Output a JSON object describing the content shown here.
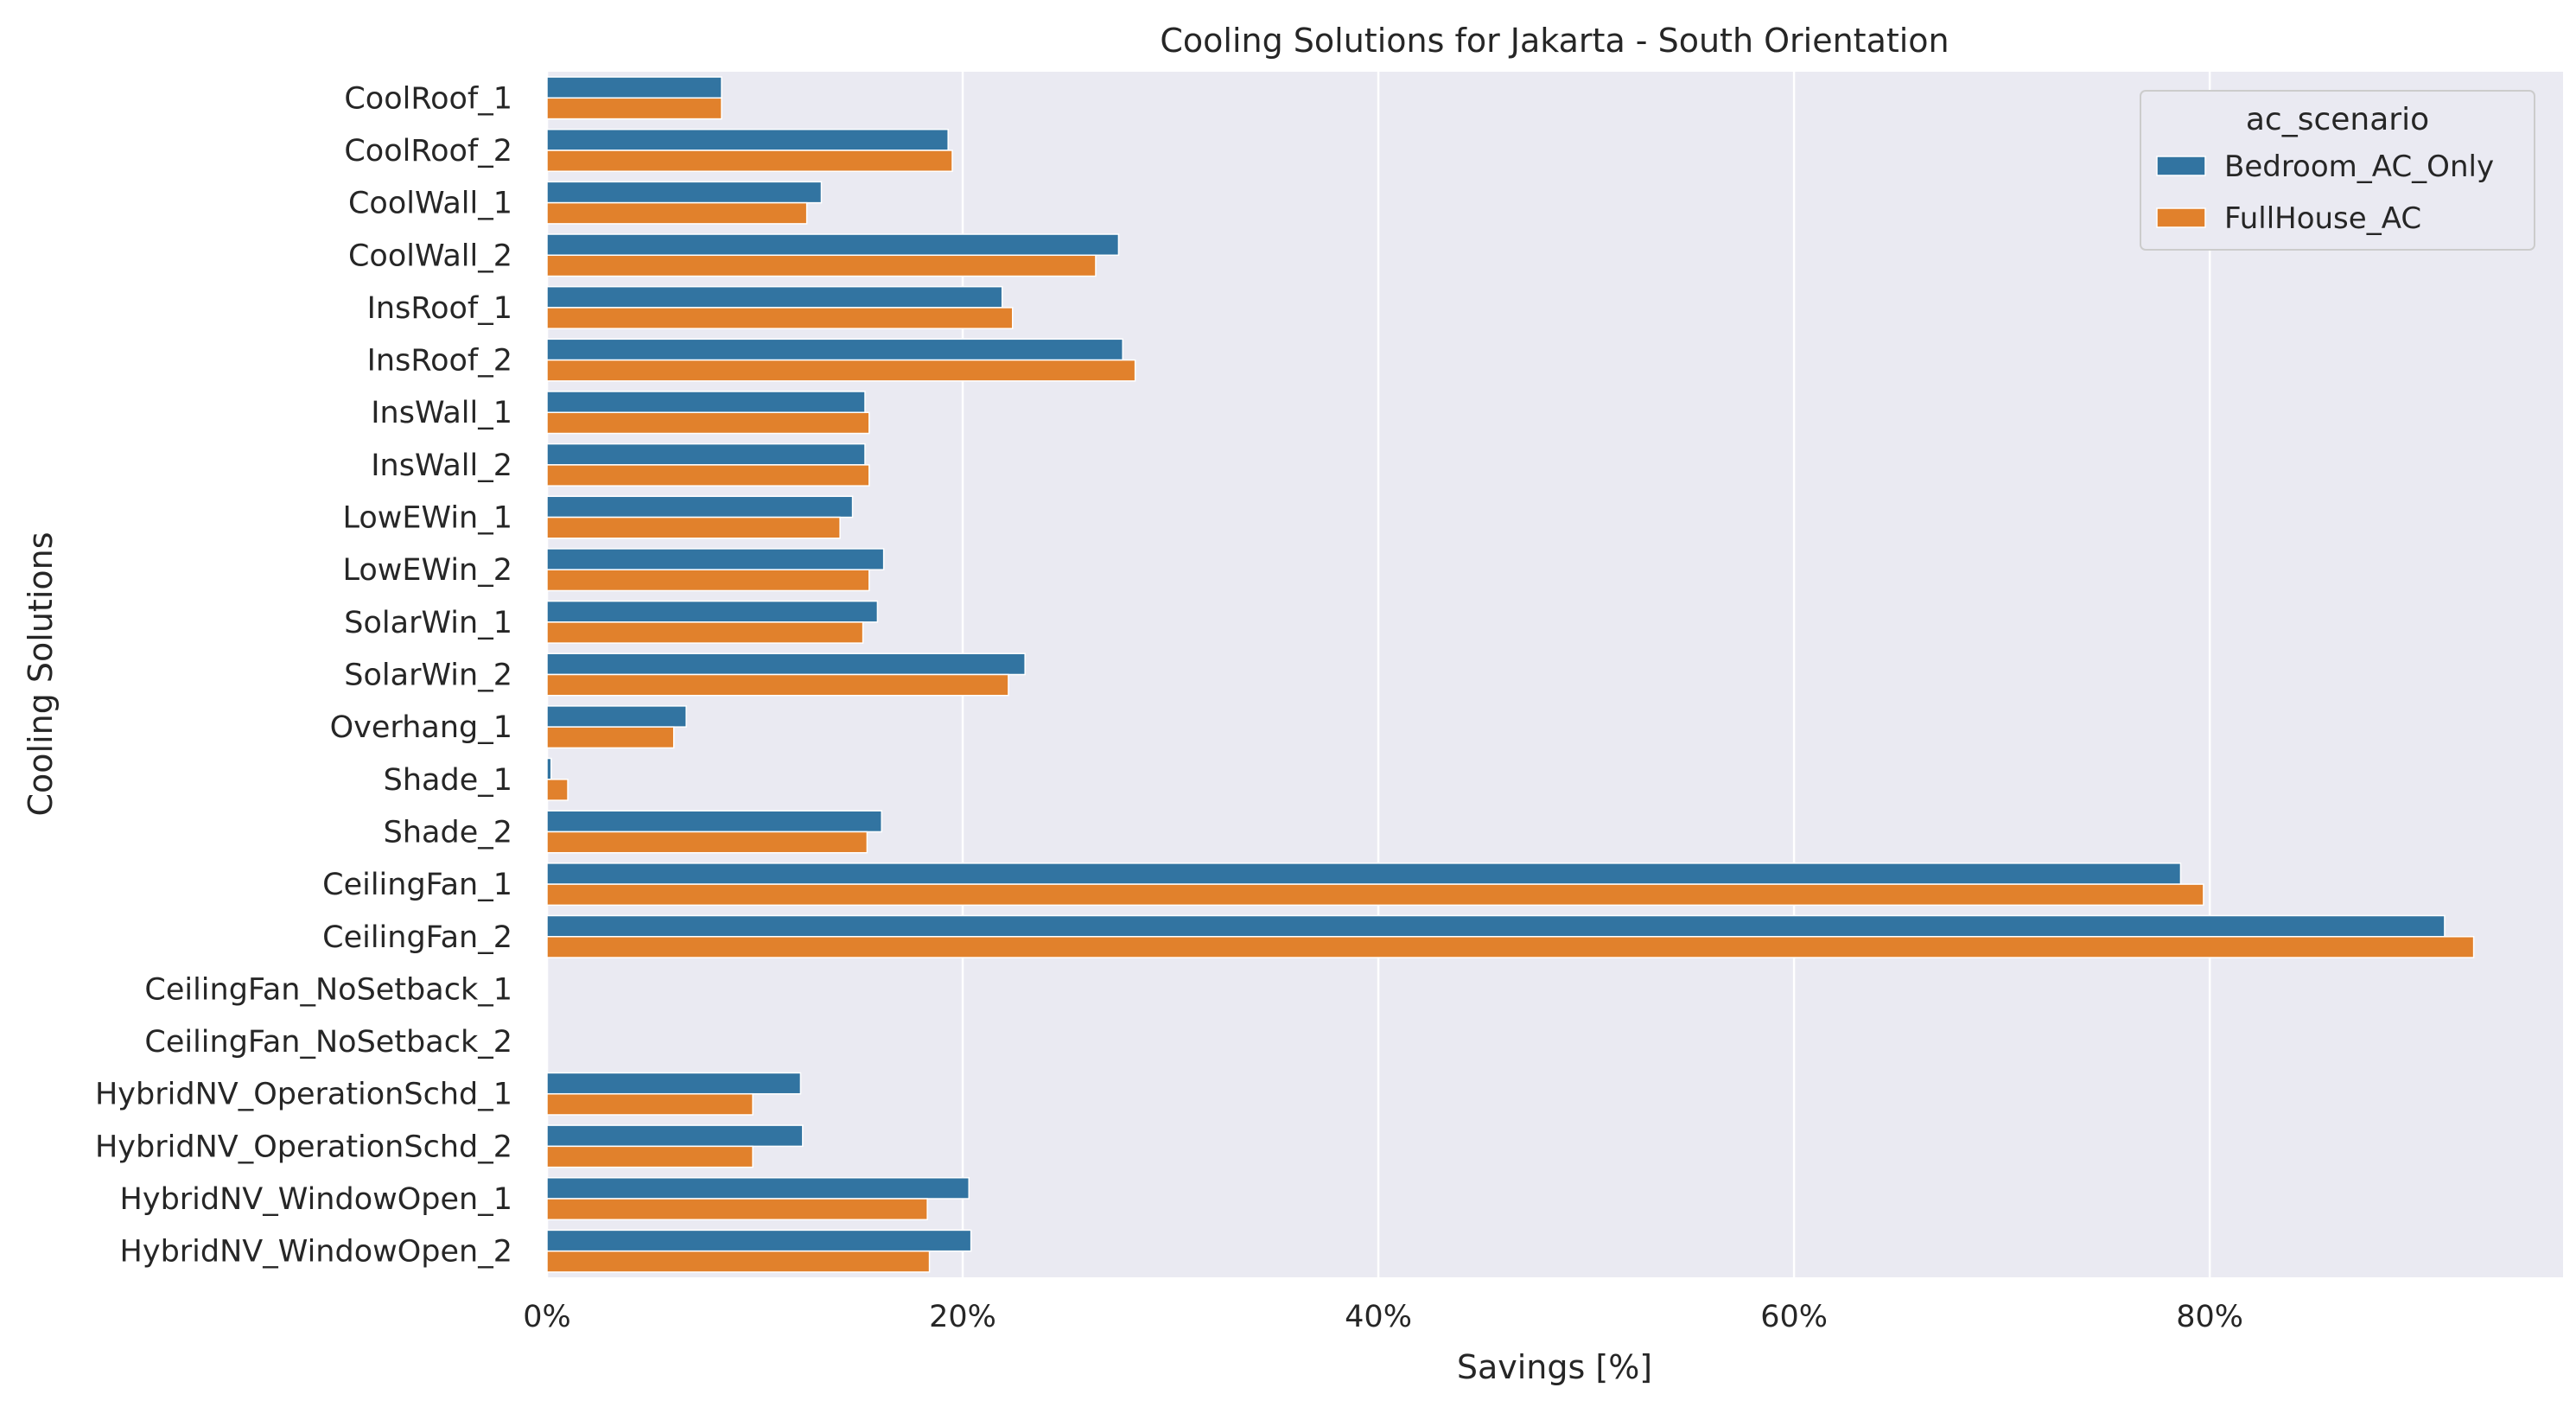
{
  "chart_data": {
    "type": "bar",
    "orientation": "horizontal",
    "title": "Cooling Solutions for Jakarta - South Orientation",
    "xlabel": "Savings [%]",
    "ylabel": "Cooling Solutions",
    "xlim": [
      0,
      97
    ],
    "xticks": [
      0,
      20,
      40,
      60,
      80
    ],
    "xtick_labels": [
      "0%",
      "20%",
      "40%",
      "60%",
      "80%"
    ],
    "grid": "vertical",
    "legend": {
      "title": "ac_scenario",
      "placement": "top-right"
    },
    "categories": [
      "CoolRoof_1",
      "CoolRoof_2",
      "CoolWall_1",
      "CoolWall_2",
      "InsRoof_1",
      "InsRoof_2",
      "InsWall_1",
      "InsWall_2",
      "LowEWin_1",
      "LowEWin_2",
      "SolarWin_1",
      "SolarWin_2",
      "Overhang_1",
      "Shade_1",
      "Shade_2",
      "CeilingFan_1",
      "CeilingFan_2",
      "CeilingFan_NoSetback_1",
      "CeilingFan_NoSetback_2",
      "HybridNV_OperationSchd_1",
      "HybridNV_OperationSchd_2",
      "HybridNV_WindowOpen_1",
      "HybridNV_WindowOpen_2"
    ],
    "series": [
      {
        "name": "Bedroom_AC_Only",
        "color": "#3274a1",
        "values": [
          8.4,
          19.3,
          13.2,
          27.5,
          21.9,
          27.7,
          15.3,
          15.3,
          14.7,
          16.2,
          15.9,
          23.0,
          6.7,
          0.2,
          16.1,
          78.6,
          91.3,
          null,
          null,
          12.2,
          12.3,
          20.3,
          20.4
        ]
      },
      {
        "name": "FullHouse_AC",
        "color": "#e1812c",
        "values": [
          8.4,
          19.5,
          12.5,
          26.4,
          22.4,
          28.3,
          15.5,
          15.5,
          14.1,
          15.5,
          15.2,
          22.2,
          6.1,
          1.0,
          15.4,
          79.7,
          92.7,
          null,
          null,
          9.9,
          9.9,
          18.3,
          18.4
        ]
      }
    ]
  }
}
